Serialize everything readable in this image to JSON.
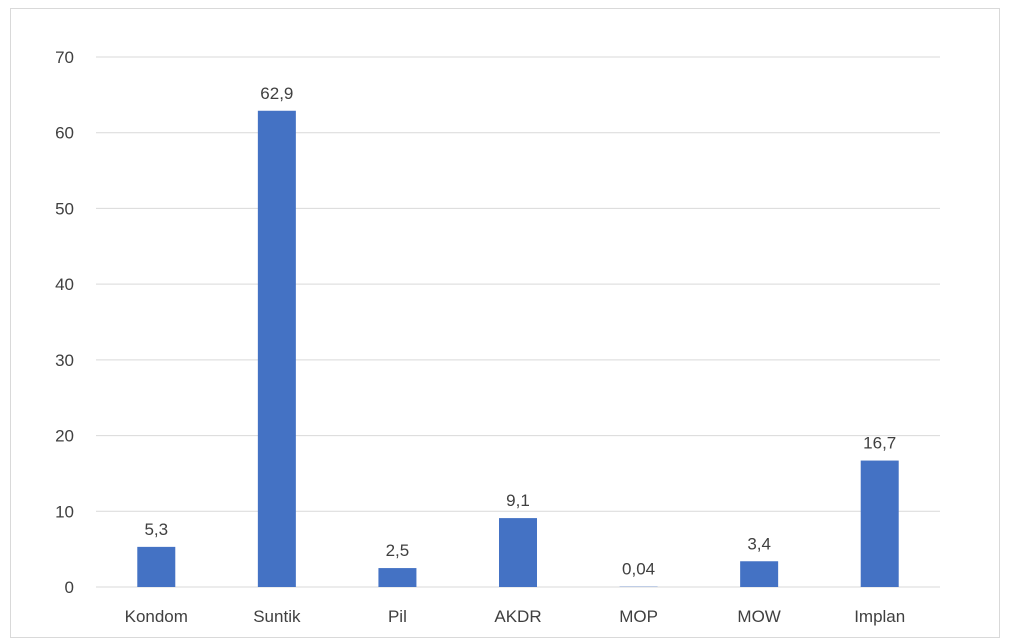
{
  "chart_data": {
    "type": "bar",
    "categories": [
      "Kondom",
      "Suntik",
      "Pil",
      "AKDR",
      "MOP",
      "MOW",
      "Implan"
    ],
    "values": [
      5.3,
      62.9,
      2.5,
      9.1,
      0.04,
      3.4,
      16.7
    ],
    "data_labels": [
      "5,3",
      "62,9",
      "2,5",
      "9,1",
      "0,04",
      "3,4",
      "16,7"
    ],
    "y_ticks": [
      "0",
      "10",
      "20",
      "30",
      "40",
      "50",
      "60",
      "70"
    ],
    "ylim": [
      0,
      70
    ],
    "grid": true,
    "legend": "none",
    "bar_color": "#4472c4",
    "grid_color": "#d9d9d9"
  }
}
